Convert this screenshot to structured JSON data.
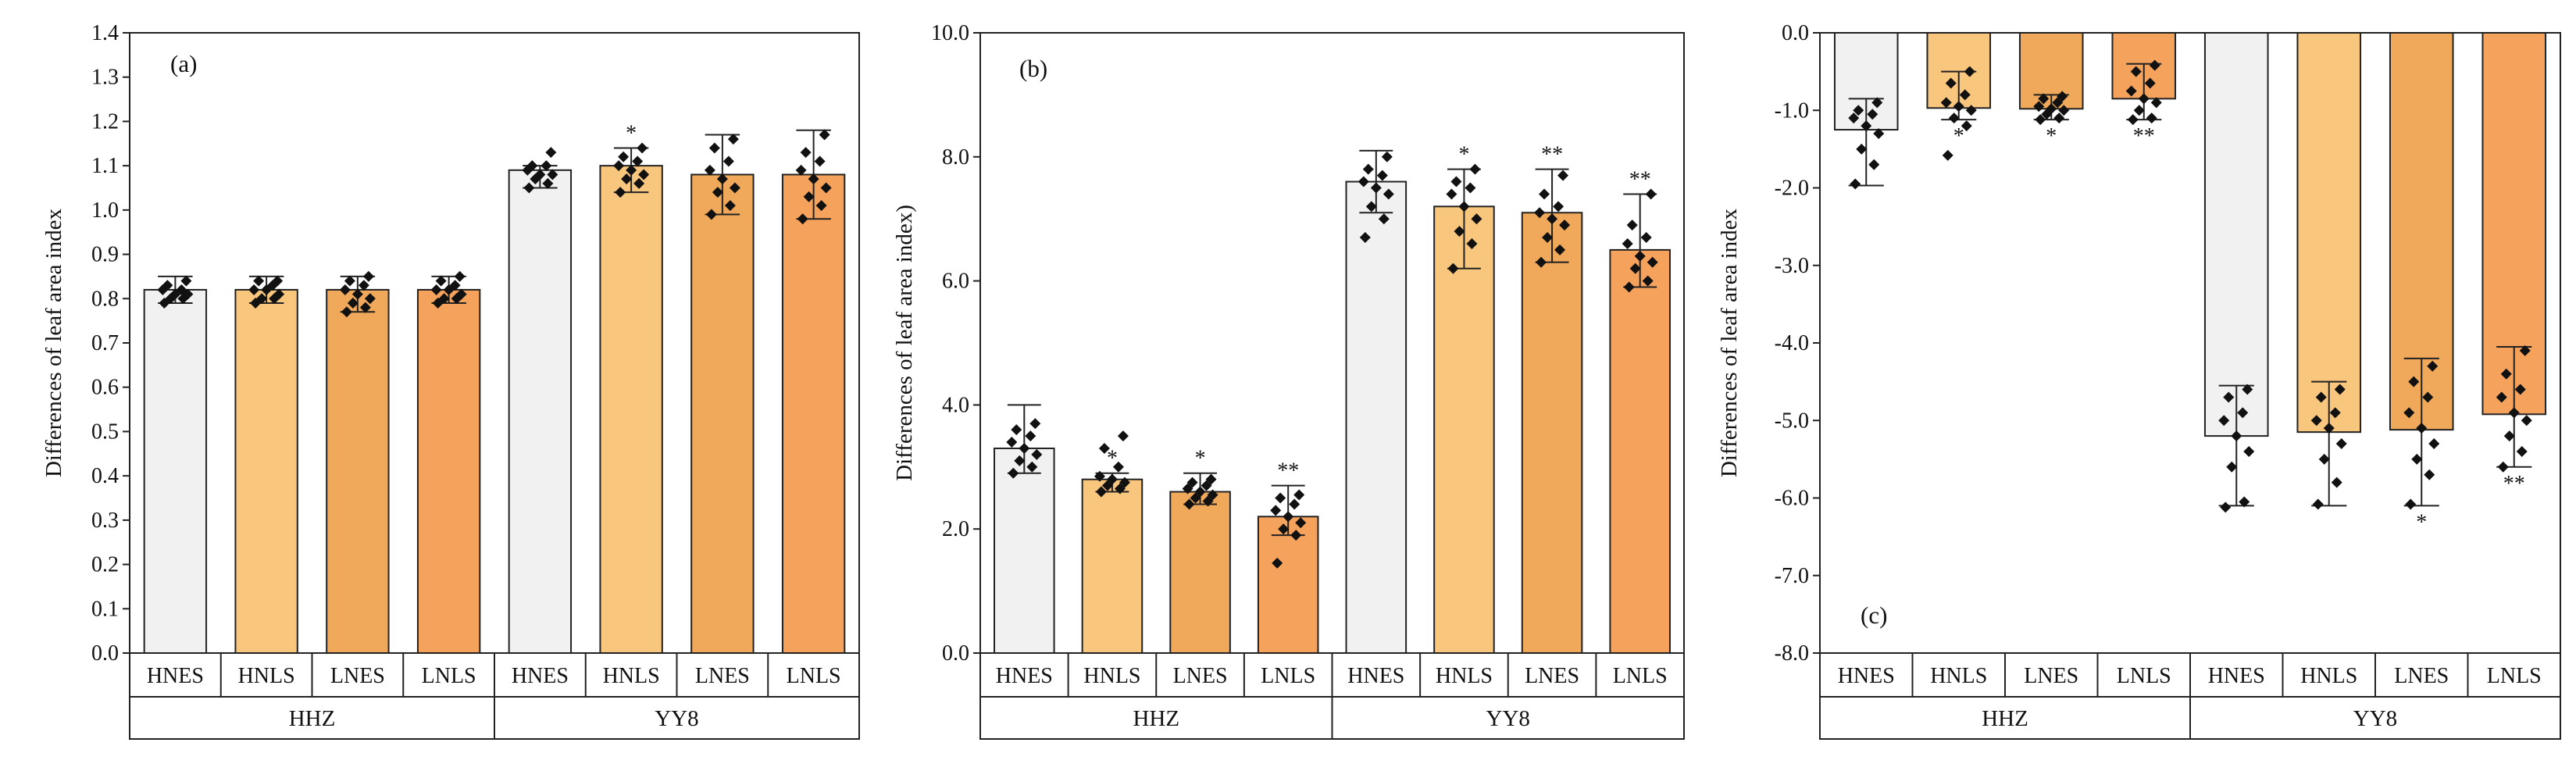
{
  "figure": {
    "colors": {
      "HNES": "#f1f1f1",
      "HNLS": "#f8c67c",
      "LNES": "#f0a95a",
      "LNLS": "#f5a25c",
      "frame": "#222222",
      "point": "#111111"
    }
  },
  "chart_data": [
    {
      "type": "bar",
      "panel_label": "(a)",
      "ylabel": "Differences of leaf area index",
      "ylim": [
        0.0,
        1.4
      ],
      "yticks": [
        0.0,
        0.1,
        0.2,
        0.3,
        0.4,
        0.5,
        0.6,
        0.7,
        0.8,
        0.9,
        1.0,
        1.1,
        1.2,
        1.3,
        1.4
      ],
      "ytick_labels": [
        "0.0",
        "0.1",
        "0.2",
        "0.3",
        "0.4",
        "0.5",
        "0.6",
        "0.7",
        "0.8",
        "0.9",
        "1.0",
        "1.1",
        "1.2",
        "1.3",
        "1.4"
      ],
      "categories": [
        "HNES",
        "HNLS",
        "LNES",
        "LNLS",
        "HNES",
        "HNLS",
        "LNES",
        "LNLS"
      ],
      "groups": [
        {
          "name": "HHZ",
          "count": 4
        },
        {
          "name": "YY8",
          "count": 4
        }
      ],
      "values": [
        0.82,
        0.82,
        0.82,
        0.82,
        1.09,
        1.1,
        1.08,
        1.08
      ],
      "error_low": [
        0.79,
        0.79,
        0.77,
        0.79,
        1.05,
        1.04,
        0.99,
        0.98
      ],
      "error_high": [
        0.85,
        0.85,
        0.85,
        0.85,
        1.1,
        1.14,
        1.17,
        1.18
      ],
      "significance": [
        "",
        "",
        "",
        "",
        "",
        "*",
        "",
        ""
      ],
      "points": [
        [
          0.79,
          0.8,
          0.8,
          0.81,
          0.81,
          0.82,
          0.82,
          0.83,
          0.84
        ],
        [
          0.79,
          0.8,
          0.8,
          0.81,
          0.82,
          0.82,
          0.83,
          0.84,
          0.84
        ],
        [
          0.77,
          0.78,
          0.79,
          0.8,
          0.81,
          0.82,
          0.83,
          0.84,
          0.85
        ],
        [
          0.79,
          0.8,
          0.8,
          0.81,
          0.82,
          0.82,
          0.83,
          0.84,
          0.85
        ],
        [
          1.05,
          1.06,
          1.07,
          1.08,
          1.08,
          1.09,
          1.1,
          1.1,
          1.13
        ],
        [
          1.04,
          1.06,
          1.07,
          1.08,
          1.09,
          1.1,
          1.11,
          1.12,
          1.14
        ],
        [
          0.99,
          1.01,
          1.04,
          1.05,
          1.07,
          1.09,
          1.11,
          1.14,
          1.16
        ],
        [
          0.98,
          1.01,
          1.03,
          1.05,
          1.07,
          1.09,
          1.11,
          1.13,
          1.17
        ]
      ]
    },
    {
      "type": "bar",
      "panel_label": "(b)",
      "ylabel": "Differences of leaf area index)",
      "ylim": [
        0.0,
        10.0
      ],
      "yticks": [
        0.0,
        2.0,
        4.0,
        6.0,
        8.0,
        10.0
      ],
      "ytick_labels": [
        "0.0",
        "2.0",
        "4.0",
        "6.0",
        "8.0",
        "10.0"
      ],
      "categories": [
        "HNES",
        "HNLS",
        "LNES",
        "LNLS",
        "HNES",
        "HNLS",
        "LNES",
        "LNLS"
      ],
      "groups": [
        {
          "name": "HHZ",
          "count": 4
        },
        {
          "name": "YY8",
          "count": 4
        }
      ],
      "values": [
        3.3,
        2.8,
        2.6,
        2.2,
        7.6,
        7.2,
        7.1,
        6.5
      ],
      "error_low": [
        2.9,
        2.6,
        2.4,
        1.9,
        7.1,
        6.2,
        6.3,
        5.9
      ],
      "error_high": [
        4.0,
        2.9,
        2.9,
        2.7,
        8.1,
        7.8,
        7.8,
        7.4
      ],
      "significance": [
        "",
        "*",
        "*",
        "**",
        "",
        "*",
        "**",
        "**"
      ],
      "points": [
        [
          2.9,
          3.0,
          3.1,
          3.2,
          3.3,
          3.4,
          3.5,
          3.6,
          3.7
        ],
        [
          2.6,
          2.65,
          2.7,
          2.75,
          2.8,
          2.85,
          3.0,
          3.3,
          3.5
        ],
        [
          2.4,
          2.45,
          2.5,
          2.55,
          2.6,
          2.65,
          2.7,
          2.75,
          2.8
        ],
        [
          1.45,
          1.9,
          2.0,
          2.1,
          2.2,
          2.3,
          2.4,
          2.5,
          2.55
        ],
        [
          6.7,
          7.0,
          7.2,
          7.4,
          7.5,
          7.6,
          7.7,
          7.8,
          8.0
        ],
        [
          6.2,
          6.6,
          6.8,
          7.0,
          7.2,
          7.4,
          7.5,
          7.6,
          7.8
        ],
        [
          6.3,
          6.5,
          6.7,
          6.9,
          7.0,
          7.1,
          7.2,
          7.4,
          7.7
        ],
        [
          5.9,
          6.0,
          6.2,
          6.3,
          6.4,
          6.6,
          6.7,
          6.9,
          7.4
        ]
      ]
    },
    {
      "type": "bar",
      "panel_label": "(c)",
      "ylabel": "Differences of leaf area index",
      "ylim": [
        -8.0,
        0.0
      ],
      "yticks": [
        -8.0,
        -7.0,
        -6.0,
        -5.0,
        -4.0,
        -3.0,
        -2.0,
        -1.0,
        0.0
      ],
      "ytick_labels": [
        "-8.0",
        "-7.0",
        "-6.0",
        "-5.0",
        "-4.0",
        "-3.0",
        "-2.0",
        "-1.0",
        "0.0"
      ],
      "categories": [
        "HNES",
        "HNLS",
        "LNES",
        "LNLS",
        "HNES",
        "HNLS",
        "LNES",
        "LNLS"
      ],
      "groups": [
        {
          "name": "HHZ",
          "count": 4
        },
        {
          "name": "YY8",
          "count": 4
        }
      ],
      "values": [
        -1.25,
        -0.97,
        -0.98,
        -0.85,
        -5.2,
        -5.15,
        -5.12,
        -4.92
      ],
      "error_low": [
        -1.97,
        -1.12,
        -1.12,
        -1.12,
        -6.1,
        -6.1,
        -6.1,
        -5.6
      ],
      "error_high": [
        -0.85,
        -0.5,
        -0.8,
        -0.4,
        -4.55,
        -4.5,
        -4.2,
        -4.05
      ],
      "significance": [
        "",
        "*",
        "*",
        "**",
        "",
        "",
        "*",
        "**"
      ],
      "points": [
        [
          -1.95,
          -1.7,
          -1.5,
          -1.3,
          -1.2,
          -1.1,
          -1.05,
          -1.0,
          -0.9
        ],
        [
          -1.58,
          -1.2,
          -1.1,
          -1.0,
          -0.95,
          -0.9,
          -0.8,
          -0.65,
          -0.5
        ],
        [
          -1.12,
          -1.1,
          -1.05,
          -1.0,
          -0.98,
          -0.95,
          -0.9,
          -0.85,
          -0.82
        ],
        [
          -1.12,
          -1.1,
          -1.0,
          -0.9,
          -0.85,
          -0.75,
          -0.65,
          -0.5,
          -0.42
        ],
        [
          -6.12,
          -6.05,
          -5.6,
          -5.4,
          -5.2,
          -5.0,
          -4.9,
          -4.7,
          -4.6
        ],
        [
          -6.08,
          -5.8,
          -5.5,
          -5.3,
          -5.1,
          -5.0,
          -4.9,
          -4.7,
          -4.6
        ],
        [
          -6.08,
          -5.7,
          -5.5,
          -5.3,
          -5.1,
          -4.9,
          -4.7,
          -4.5,
          -4.3
        ],
        [
          -5.6,
          -5.4,
          -5.2,
          -5.0,
          -4.9,
          -4.7,
          -4.6,
          -4.4,
          -4.1
        ]
      ]
    }
  ]
}
